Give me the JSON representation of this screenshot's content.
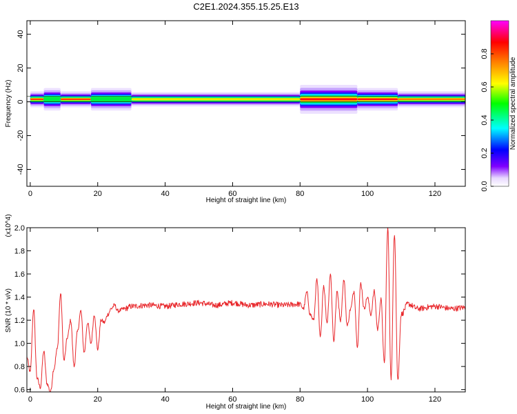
{
  "title": "C2E1.2024.355.15.25.E13",
  "chart_data": [
    {
      "type": "heatmap",
      "name": "spectrogram",
      "xlabel": "Height of straight line (km)",
      "ylabel": "Frequency (Hz)",
      "xlim": [
        -1,
        129
      ],
      "ylim": [
        -50,
        48
      ],
      "x_ticks": [
        0,
        20,
        40,
        60,
        80,
        100,
        120
      ],
      "y_ticks": [
        40,
        20,
        0,
        -20,
        -40
      ],
      "colorbar": {
        "label": "Normalized spectral amplitude",
        "range": [
          0,
          1
        ],
        "ticks": [
          "0.0",
          "0.2",
          "0.4",
          "0.6",
          "0.8"
        ],
        "colors": [
          "#ffffff",
          "#8000ff",
          "#0000ff",
          "#00ffff",
          "#00ff00",
          "#ffff00",
          "#ff8000",
          "#ff0000",
          "#ff00ff"
        ]
      },
      "band": {
        "center_hz": 1.5,
        "segments": [
          {
            "x": [
              0,
              4
            ],
            "halfwidth_hz": 2.5,
            "peak": 0.85
          },
          {
            "x": [
              4,
              9
            ],
            "halfwidth_hz": 3.5,
            "peak": 0.5
          },
          {
            "x": [
              9,
              18
            ],
            "halfwidth_hz": 2.5,
            "peak": 0.9
          },
          {
            "x": [
              18,
              30
            ],
            "halfwidth_hz": 3.5,
            "peak": 0.45
          },
          {
            "x": [
              30,
              80
            ],
            "halfwidth_hz": 2.2,
            "peak": 0.65
          },
          {
            "x": [
              80,
              97
            ],
            "halfwidth_hz": 4.5,
            "peak": 0.9
          },
          {
            "x": [
              97,
              109
            ],
            "halfwidth_hz": 3.5,
            "peak": 0.8
          },
          {
            "x": [
              109,
              129
            ],
            "halfwidth_hz": 2.5,
            "peak": 0.7
          }
        ]
      }
    },
    {
      "type": "line",
      "name": "snr",
      "xlabel": "Height of straight line (km)",
      "ylabel": "SNR (10 * v/v)",
      "y_multiplier": "(x10^4)",
      "xlim": [
        -1,
        129
      ],
      "ylim": [
        0.58,
        2.0
      ],
      "x_ticks": [
        0,
        20,
        40,
        60,
        80,
        100,
        120
      ],
      "y_ticks": [
        "0.6",
        "0.8",
        "1.0",
        "1.2",
        "1.4",
        "1.6",
        "1.8",
        "2.0"
      ],
      "color": "#e8262a",
      "x": [
        -1,
        0,
        1,
        2,
        3,
        4,
        5,
        6,
        7,
        8,
        9,
        10,
        11,
        12,
        13,
        14,
        15,
        16,
        17,
        18,
        19,
        20,
        21,
        22,
        23,
        24,
        25,
        26,
        28,
        30,
        35,
        40,
        45,
        50,
        55,
        60,
        65,
        70,
        75,
        80,
        81,
        82,
        83,
        84,
        85,
        86,
        87,
        88,
        89,
        90,
        91,
        92,
        93,
        94,
        95,
        96,
        97,
        98,
        99,
        100,
        101,
        102,
        103,
        104,
        105,
        106,
        107,
        108,
        109,
        110,
        112,
        115,
        120,
        125,
        129
      ],
      "y": [
        0.88,
        0.75,
        1.3,
        0.7,
        0.62,
        0.93,
        0.65,
        0.58,
        0.78,
        0.95,
        1.43,
        0.85,
        1.05,
        1.2,
        0.8,
        1.1,
        1.28,
        0.92,
        1.18,
        1.0,
        1.25,
        0.95,
        1.2,
        1.18,
        1.25,
        1.3,
        1.33,
        1.28,
        1.3,
        1.32,
        1.33,
        1.32,
        1.34,
        1.35,
        1.33,
        1.35,
        1.33,
        1.34,
        1.33,
        1.34,
        1.3,
        1.44,
        1.25,
        1.2,
        1.55,
        1.05,
        1.5,
        1.18,
        1.6,
        1.02,
        1.45,
        1.2,
        1.55,
        1.15,
        1.3,
        1.45,
        0.98,
        1.52,
        1.3,
        1.4,
        1.25,
        1.45,
        1.12,
        1.38,
        0.82,
        2.0,
        0.7,
        1.95,
        0.68,
        1.25,
        1.34,
        1.3,
        1.32,
        1.3,
        1.31
      ]
    }
  ]
}
